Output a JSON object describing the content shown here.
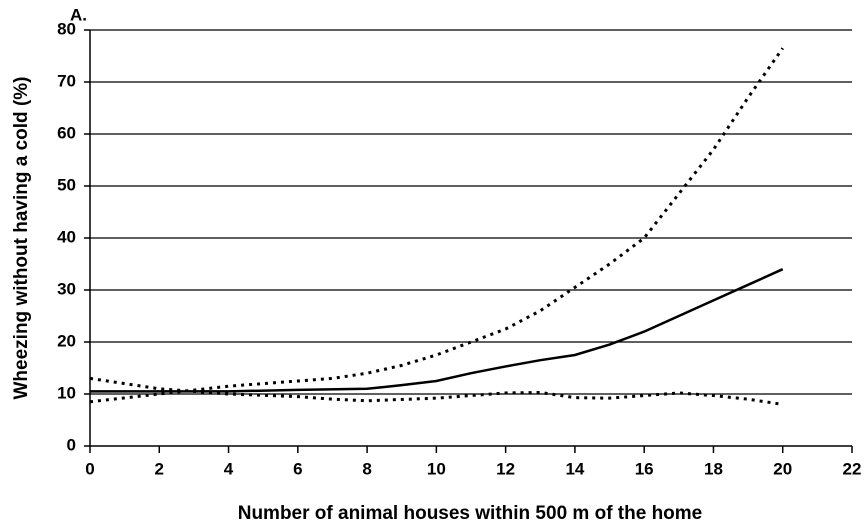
{
  "chart_data": {
    "type": "line",
    "title": "A.",
    "xlabel": "Number of animal houses within 500 m of the home",
    "ylabel": "Wheezing without having a cold (%)",
    "xlim": [
      0,
      22
    ],
    "xticks": [
      0,
      2,
      4,
      6,
      8,
      10,
      12,
      14,
      16,
      18,
      20,
      22
    ],
    "ylim": [
      0,
      80
    ],
    "yticks": [
      0,
      10,
      20,
      30,
      40,
      50,
      60,
      70,
      80
    ],
    "grid": true,
    "series": [
      {
        "color": "#000000",
        "style": "solid",
        "x": [
          0,
          2,
          4,
          6,
          8,
          9,
          10,
          11,
          12,
          13,
          14,
          15,
          16,
          17,
          18,
          19,
          20
        ],
        "values": [
          10.5,
          10.5,
          10.5,
          10.8,
          11,
          11.7,
          12.5,
          14,
          15.3,
          16.5,
          17.5,
          19.5,
          22,
          25,
          28,
          31,
          34
        ]
      },
      {
        "color": "#000000",
        "style": "dotted",
        "x": [
          0,
          2,
          4,
          6,
          7,
          8,
          9,
          10,
          11,
          12,
          13,
          14,
          15,
          16,
          17,
          18,
          19,
          20
        ],
        "values": [
          8.5,
          10,
          11.5,
          12.5,
          13,
          14,
          15.5,
          17.5,
          20,
          22.5,
          26,
          30.5,
          35,
          40,
          48.5,
          57,
          67,
          76.5
        ]
      },
      {
        "color": "#000000",
        "style": "dotted",
        "x": [
          0,
          2,
          4,
          6,
          7,
          8,
          10,
          12,
          13,
          14,
          15,
          16,
          17,
          18,
          19,
          20
        ],
        "values": [
          13,
          11,
          10,
          9.5,
          9,
          8.7,
          9.2,
          10.2,
          10.3,
          9.3,
          9.2,
          9.7,
          10.2,
          9.7,
          9,
          8
        ]
      }
    ]
  }
}
